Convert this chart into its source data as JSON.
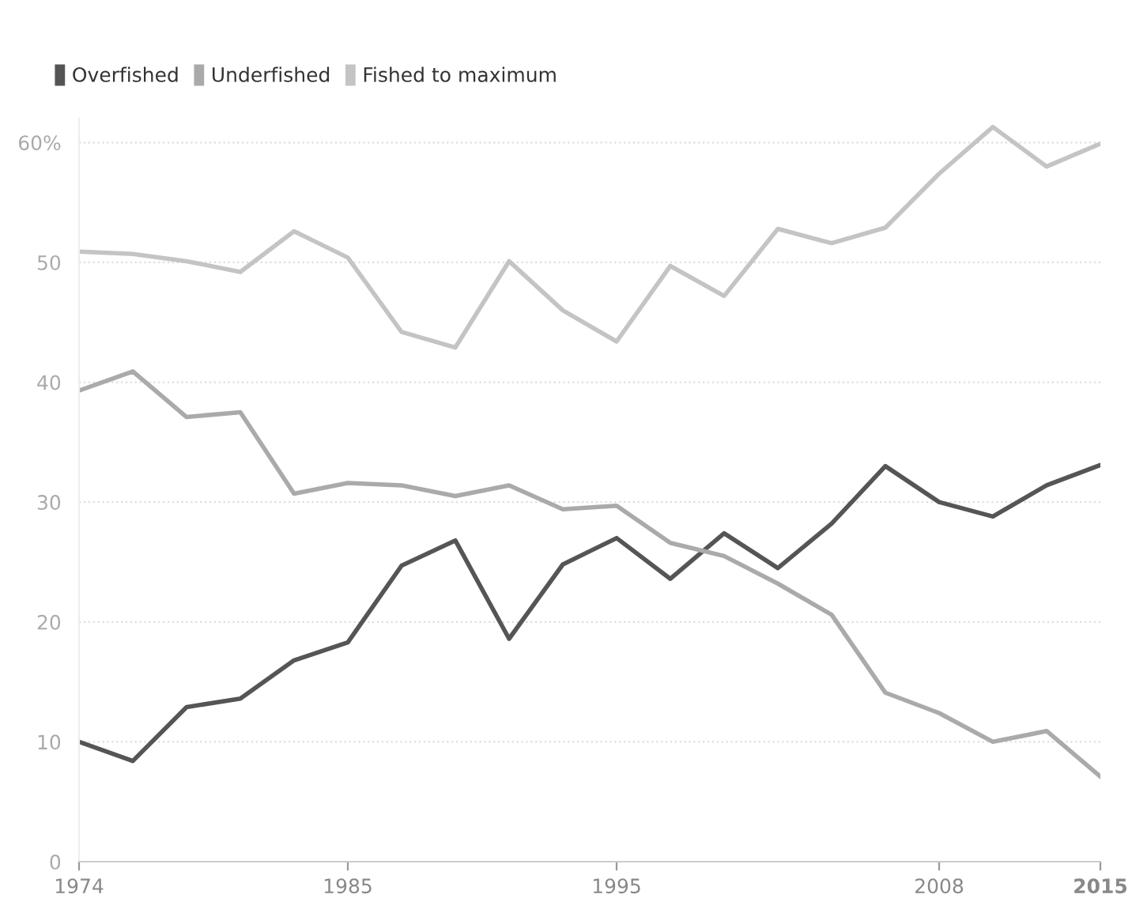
{
  "chart_data": {
    "type": "line",
    "categories": [
      "1974",
      null,
      null,
      null,
      null,
      "1985",
      null,
      null,
      null,
      null,
      "1995",
      null,
      null,
      null,
      null,
      null,
      "2008",
      null,
      null,
      "2015"
    ],
    "series": [
      {
        "name": "Overfished",
        "color": "#555555",
        "values": [
          10.0,
          8.4,
          12.9,
          13.6,
          16.8,
          18.3,
          24.7,
          26.8,
          18.6,
          24.8,
          27.0,
          23.6,
          27.4,
          24.5,
          28.2,
          33.0,
          30.0,
          28.8,
          31.4,
          33.1
        ]
      },
      {
        "name": "Underfished",
        "color": "#aaaaaa",
        "values": [
          39.3,
          40.9,
          37.1,
          37.5,
          30.7,
          31.6,
          31.4,
          30.5,
          31.4,
          29.4,
          29.7,
          26.6,
          25.5,
          23.2,
          20.6,
          14.1,
          12.4,
          10.0,
          10.9,
          7.1
        ]
      },
      {
        "name": "Fished to maximum",
        "color": "#c4c4c4",
        "values": [
          50.9,
          50.7,
          50.1,
          49.2,
          52.6,
          50.4,
          44.2,
          42.9,
          50.1,
          46.0,
          43.4,
          49.7,
          47.2,
          52.8,
          51.6,
          52.9,
          57.4,
          61.3,
          58.0,
          59.9
        ]
      }
    ],
    "ylim": [
      0,
      62
    ],
    "yticks": [
      0,
      10,
      20,
      30,
      40,
      50,
      {
        "value": 60,
        "label": "60%"
      }
    ],
    "grid": "y",
    "legend": "top left",
    "marker": "none",
    "line_style": "solid"
  }
}
